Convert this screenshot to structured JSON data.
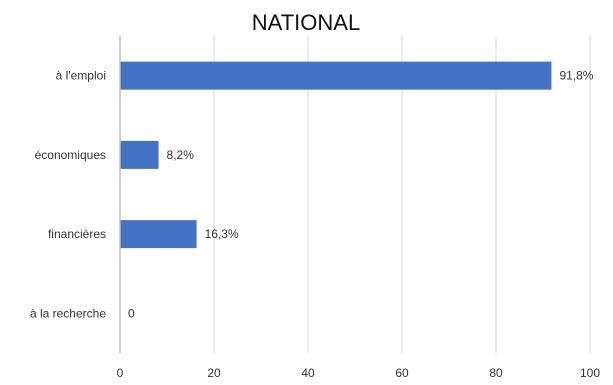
{
  "chart_data": {
    "type": "bar",
    "orientation": "horizontal",
    "title": "NATIONAL",
    "categories": [
      "à l'emploi",
      "économiques",
      "financières",
      "à la recherche"
    ],
    "values": [
      91.8,
      8.2,
      16.3,
      0
    ],
    "data_labels": [
      "91,8%",
      "8,2%",
      "16,3%",
      "0"
    ],
    "xlim": [
      0,
      100
    ],
    "x_ticks": [
      0,
      20,
      40,
      60,
      80,
      100
    ],
    "x_tick_labels": [
      "0",
      "20",
      "40",
      "60",
      "80",
      "100"
    ],
    "grid": true,
    "legend": "none",
    "bar_color": "#4472c4",
    "grid_color": "#d9d9d9"
  }
}
